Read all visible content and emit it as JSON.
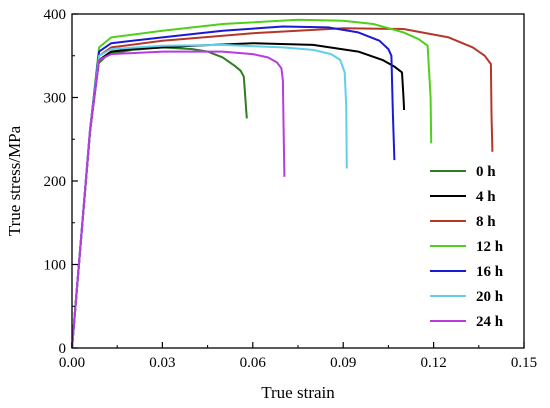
{
  "chart_data": {
    "type": "line",
    "xlabel": "True strain",
    "ylabel": "True stress/MPa",
    "xlim": [
      0,
      0.15
    ],
    "ylim": [
      0,
      400
    ],
    "xticks": [
      "0.00",
      "0.03",
      "0.06",
      "0.09",
      "0.12",
      "0.15"
    ],
    "yticks": [
      "0",
      "100",
      "200",
      "300",
      "400"
    ],
    "grid": false,
    "legend_position": "lower-right",
    "series": [
      {
        "name": "0 h",
        "color": "#2e7d20",
        "x": [
          0,
          0.003,
          0.006,
          0.0085,
          0.012,
          0.02,
          0.03,
          0.04,
          0.045,
          0.05,
          0.054,
          0.056,
          0.057,
          0.0575,
          0.058
        ],
        "y": [
          0,
          130,
          260,
          340,
          352,
          357,
          360,
          358,
          355,
          348,
          338,
          332,
          325,
          300,
          275
        ]
      },
      {
        "name": "4 h",
        "color": "#000000",
        "x": [
          0,
          0.003,
          0.006,
          0.009,
          0.013,
          0.02,
          0.04,
          0.06,
          0.08,
          0.095,
          0.103,
          0.107,
          0.1095,
          0.11,
          0.1102
        ],
        "y": [
          0,
          130,
          260,
          345,
          355,
          358,
          362,
          365,
          363,
          355,
          345,
          337,
          330,
          300,
          285
        ]
      },
      {
        "name": "8 h",
        "color": "#b5372a",
        "x": [
          0,
          0.003,
          0.006,
          0.009,
          0.013,
          0.03,
          0.06,
          0.09,
          0.11,
          0.125,
          0.133,
          0.137,
          0.139,
          0.1392,
          0.1395
        ],
        "y": [
          0,
          130,
          260,
          350,
          360,
          368,
          377,
          383,
          382,
          372,
          360,
          350,
          340,
          280,
          235
        ]
      },
      {
        "name": "12 h",
        "color": "#4fcf1c",
        "x": [
          0,
          0.003,
          0.006,
          0.009,
          0.013,
          0.03,
          0.05,
          0.075,
          0.09,
          0.1,
          0.11,
          0.115,
          0.118,
          0.119,
          0.1192
        ],
        "y": [
          0,
          130,
          262,
          360,
          372,
          380,
          388,
          393,
          392,
          388,
          378,
          370,
          362,
          300,
          245
        ]
      },
      {
        "name": "16 h",
        "color": "#1a1ad4",
        "x": [
          0,
          0.003,
          0.006,
          0.009,
          0.013,
          0.03,
          0.05,
          0.07,
          0.085,
          0.095,
          0.102,
          0.105,
          0.106,
          0.1065,
          0.107
        ],
        "y": [
          0,
          130,
          262,
          355,
          365,
          372,
          380,
          385,
          384,
          378,
          368,
          358,
          350,
          280,
          225
        ]
      },
      {
        "name": "20 h",
        "color": "#5fd0e8",
        "x": [
          0,
          0.003,
          0.006,
          0.009,
          0.013,
          0.03,
          0.05,
          0.07,
          0.08,
          0.086,
          0.089,
          0.0905,
          0.091,
          0.0912
        ],
        "y": [
          0,
          130,
          262,
          350,
          358,
          362,
          363,
          360,
          357,
          352,
          345,
          330,
          290,
          215
        ]
      },
      {
        "name": "24 h",
        "color": "#b83be0",
        "x": [
          0,
          0.003,
          0.006,
          0.009,
          0.013,
          0.03,
          0.05,
          0.06,
          0.065,
          0.068,
          0.0695,
          0.07,
          0.0702,
          0.0705
        ],
        "y": [
          0,
          130,
          262,
          345,
          352,
          355,
          355,
          352,
          348,
          342,
          335,
          320,
          270,
          205
        ]
      }
    ]
  }
}
